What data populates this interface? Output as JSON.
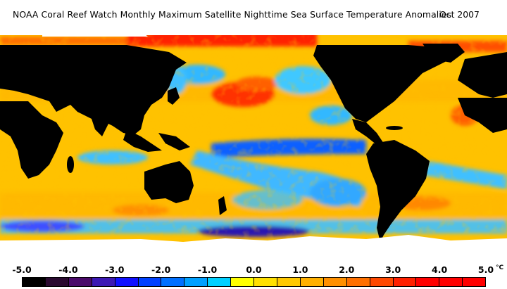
{
  "title": "NOAA Coral Reef Watch Monthly Maximum Satellite Nighttime Sea Surface Temperature Anomalies",
  "date": "Oct 2007",
  "legend": {
    "ticks": [
      "-5.0",
      "-4.0",
      "-3.0",
      "-2.0",
      "-1.0",
      "0.0",
      "1.0",
      "2.0",
      "3.0",
      "4.0",
      "5.0"
    ],
    "unit": "°C",
    "colors": [
      "#000000",
      "#2a0a30",
      "#4a0a6a",
      "#3c18b4",
      "#1010ff",
      "#0040ff",
      "#0070ff",
      "#00a0ff",
      "#00d0ff",
      "#ffff00",
      "#ffe000",
      "#ffc800",
      "#ffb000",
      "#ff9000",
      "#ff7000",
      "#ff4800",
      "#ff2000",
      "#ff0000",
      "#ff0000",
      "#ff0000"
    ]
  },
  "palette": {
    "land": "#000000",
    "ice": "#ffffff",
    "base_warm": "#ffc000",
    "cool": "#30b8ff",
    "cold": "#1050ff",
    "hot": "#ff4000"
  }
}
